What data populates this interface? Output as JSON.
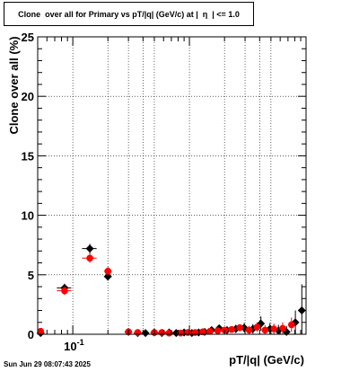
{
  "chart_data": {
    "type": "scatter",
    "title": "Clone  over all for Primary vs pT/|q| (GeV/c) at |  η  | <= 1.0",
    "xlabel": "pT/|q| (GeV/c)",
    "ylabel": "Clone  over all (%)",
    "x_scale": "log",
    "xlim": [
      0.05,
      10
    ],
    "ylim": [
      0,
      25
    ],
    "x_tick_labels": [
      "10^{-1}"
    ],
    "y_tick_labels": [
      "0",
      "5",
      "10",
      "15",
      "20",
      "25"
    ],
    "grid": true,
    "series": [
      {
        "color": "#000000",
        "marker": "diamond",
        "points": [
          {
            "x": 0.053,
            "y": 0.1,
            "xerr": 0.003,
            "yerr": 0.1
          },
          {
            "x": 0.085,
            "y": 3.9,
            "xerr": 0.012,
            "yerr": 0.35
          },
          {
            "x": 0.14,
            "y": 7.2,
            "xerr": 0.02,
            "yerr": 0.4
          },
          {
            "x": 0.2,
            "y": 4.85,
            "xerr": 0.015,
            "yerr": 0.35
          },
          {
            "x": 0.3,
            "y": 0.2,
            "xerr": 0.02,
            "yerr": 0.2
          },
          {
            "x": 0.36,
            "y": 0.1,
            "xerr": 0.02,
            "yerr": 0.1
          },
          {
            "x": 0.42,
            "y": 0.1,
            "xerr": 0.02,
            "yerr": 0.1
          },
          {
            "x": 0.5,
            "y": 0.15,
            "xerr": 0.03,
            "yerr": 0.15
          },
          {
            "x": 0.58,
            "y": 0.1,
            "xerr": 0.03,
            "yerr": 0.1
          },
          {
            "x": 0.67,
            "y": 0.15,
            "xerr": 0.03,
            "yerr": 0.15
          },
          {
            "x": 0.77,
            "y": 0.1,
            "xerr": 0.04,
            "yerr": 0.1
          },
          {
            "x": 0.9,
            "y": 0.15,
            "xerr": 0.04,
            "yerr": 0.15
          },
          {
            "x": 1.05,
            "y": 0.1,
            "xerr": 0.05,
            "yerr": 0.1
          },
          {
            "x": 1.2,
            "y": 0.15,
            "xerr": 0.05,
            "yerr": 0.15
          },
          {
            "x": 1.35,
            "y": 0.2,
            "xerr": 0.06,
            "yerr": 0.2
          },
          {
            "x": 1.55,
            "y": 0.35,
            "xerr": 0.07,
            "yerr": 0.25
          },
          {
            "x": 1.8,
            "y": 0.5,
            "xerr": 0.08,
            "yerr": 0.3
          },
          {
            "x": 2.1,
            "y": 0.35,
            "xerr": 0.1,
            "yerr": 0.3
          },
          {
            "x": 2.5,
            "y": 0.45,
            "xerr": 0.12,
            "yerr": 0.35
          },
          {
            "x": 2.95,
            "y": 0.55,
            "xerr": 0.15,
            "yerr": 0.4
          },
          {
            "x": 3.5,
            "y": 0.45,
            "xerr": 0.2,
            "yerr": 0.4
          },
          {
            "x": 4.1,
            "y": 0.9,
            "xerr": 0.25,
            "yerr": 0.6
          },
          {
            "x": 4.9,
            "y": 0.45,
            "xerr": 0.3,
            "yerr": 0.5
          },
          {
            "x": 5.8,
            "y": 0.3,
            "xerr": 0.35,
            "yerr": 0.5
          },
          {
            "x": 6.8,
            "y": 0.2,
            "xerr": 0.4,
            "yerr": 0.5
          },
          {
            "x": 8.1,
            "y": 1.0,
            "xerr": 0.45,
            "yerr": 1.0
          },
          {
            "x": 9.2,
            "y": 2.0,
            "xerr": 0.5,
            "yerr": 2.2
          }
        ]
      },
      {
        "color": "#ff0000",
        "marker": "circle",
        "points": [
          {
            "x": 0.053,
            "y": 0.25,
            "xerr": 0.003,
            "yerr": 0.1
          },
          {
            "x": 0.085,
            "y": 3.65,
            "xerr": 0.012,
            "yerr": 0.35
          },
          {
            "x": 0.14,
            "y": 6.4,
            "xerr": 0.02,
            "yerr": 0.4
          },
          {
            "x": 0.2,
            "y": 5.3,
            "xerr": 0.015,
            "yerr": 0.35
          },
          {
            "x": 0.3,
            "y": 0.2,
            "xerr": 0.02,
            "yerr": 0.15
          },
          {
            "x": 0.36,
            "y": 0.15,
            "xerr": 0.02,
            "yerr": 0.1
          },
          {
            "x": 0.5,
            "y": 0.15,
            "xerr": 0.03,
            "yerr": 0.1
          },
          {
            "x": 0.58,
            "y": 0.15,
            "xerr": 0.03,
            "yerr": 0.1
          },
          {
            "x": 0.67,
            "y": 0.1,
            "xerr": 0.03,
            "yerr": 0.1
          },
          {
            "x": 0.84,
            "y": 0.1,
            "xerr": 0.04,
            "yerr": 0.1
          },
          {
            "x": 0.97,
            "y": 0.15,
            "xerr": 0.05,
            "yerr": 0.1
          },
          {
            "x": 1.12,
            "y": 0.15,
            "xerr": 0.05,
            "yerr": 0.1
          },
          {
            "x": 1.3,
            "y": 0.2,
            "xerr": 0.06,
            "yerr": 0.15
          },
          {
            "x": 1.5,
            "y": 0.25,
            "xerr": 0.07,
            "yerr": 0.15
          },
          {
            "x": 1.75,
            "y": 0.3,
            "xerr": 0.08,
            "yerr": 0.2
          },
          {
            "x": 2.0,
            "y": 0.35,
            "xerr": 0.1,
            "yerr": 0.2
          },
          {
            "x": 2.3,
            "y": 0.4,
            "xerr": 0.11,
            "yerr": 0.25
          },
          {
            "x": 2.7,
            "y": 0.55,
            "xerr": 0.13,
            "yerr": 0.3
          },
          {
            "x": 3.25,
            "y": 0.35,
            "xerr": 0.17,
            "yerr": 0.35
          },
          {
            "x": 3.8,
            "y": 0.6,
            "xerr": 0.2,
            "yerr": 0.4
          },
          {
            "x": 4.45,
            "y": 0.35,
            "xerr": 0.25,
            "yerr": 0.4
          },
          {
            "x": 5.3,
            "y": 0.45,
            "xerr": 0.3,
            "yerr": 0.45
          },
          {
            "x": 6.3,
            "y": 0.5,
            "xerr": 0.35,
            "yerr": 0.5
          },
          {
            "x": 7.5,
            "y": 0.8,
            "xerr": 0.4,
            "yerr": 0.6
          }
        ]
      }
    ]
  },
  "stamp": "Sun Jun 29 08:07:43 2025"
}
